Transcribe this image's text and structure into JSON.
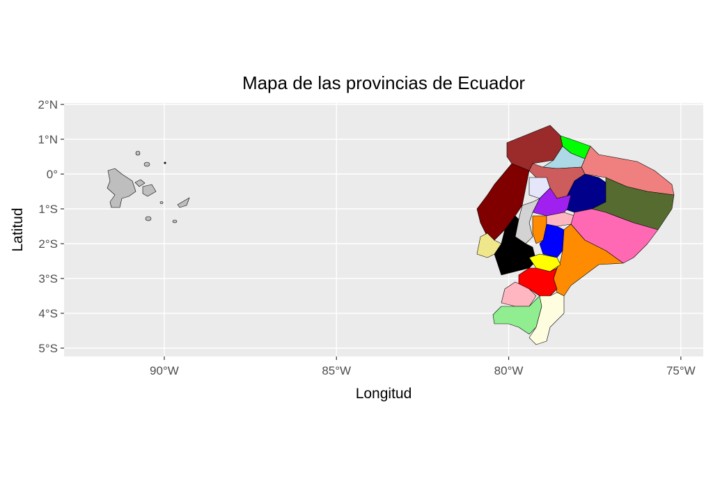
{
  "chart_data": {
    "type": "map",
    "title": "Mapa de las provincias de Ecuador",
    "x_label": "Longitud",
    "y_label": "Latitud",
    "xlim": [
      -92.91,
      -74.35
    ],
    "ylim": [
      -5.24,
      2.04
    ],
    "xticks": [
      {
        "value": -90,
        "label": "90°W"
      },
      {
        "value": -85,
        "label": "85°W"
      },
      {
        "value": -80,
        "label": "80°W"
      },
      {
        "value": -75,
        "label": "75°W"
      }
    ],
    "yticks": [
      {
        "value": 2,
        "label": "2°N"
      },
      {
        "value": 1,
        "label": "1°N"
      },
      {
        "value": 0,
        "label": "0°"
      },
      {
        "value": -1,
        "label": "1°S"
      },
      {
        "value": -2,
        "label": "2°S"
      },
      {
        "value": -3,
        "label": "3°S"
      },
      {
        "value": -4,
        "label": "4°S"
      },
      {
        "value": -5,
        "label": "5°S"
      }
    ],
    "grid": true
  }
}
